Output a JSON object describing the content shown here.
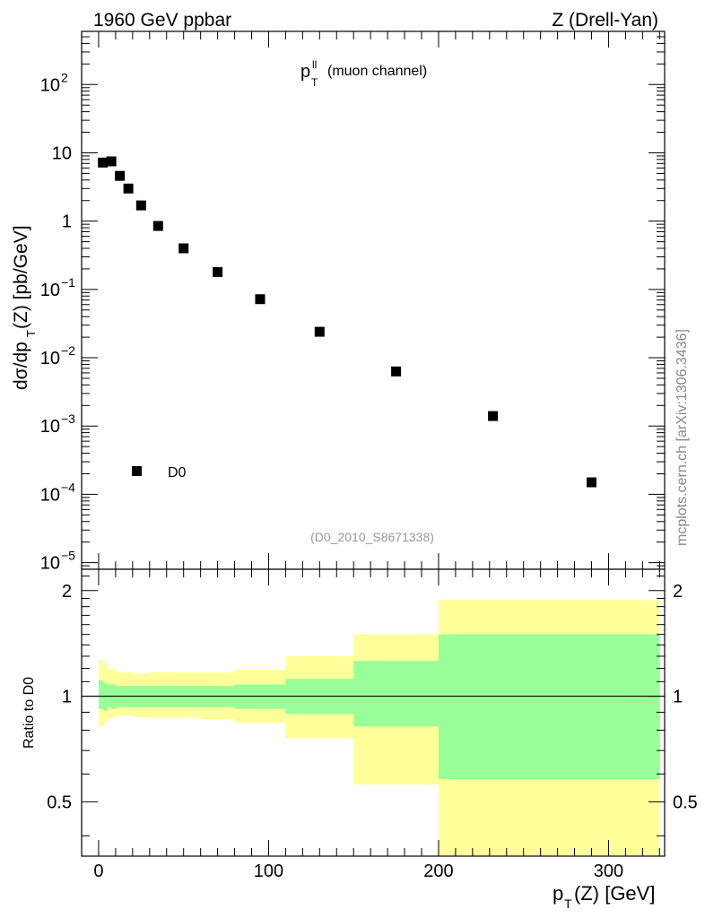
{
  "header": {
    "left_title": "1960 GeV ppbar",
    "right_title": "Z (Drell-Yan)"
  },
  "watermark": "mcplots.cern.ch [arXiv:1306.3436]",
  "colors": {
    "inner_band": "#99ff99",
    "outer_band": "#ffff99",
    "markers": "#000000",
    "ref_label": "#999999",
    "watermark": "#888888"
  },
  "chart_data": [
    {
      "type": "scatter",
      "title": "p_T^ll (muon channel)",
      "title_main": "p",
      "title_sup": "ll",
      "title_sub": "T",
      "title_rest": "(muon channel)",
      "ylabel": "dσ/dp_T(Z) [pb/GeV]",
      "ylabel_main": "dσ/dp",
      "ylabel_sub": "T",
      "ylabel_rest": "(Z) [pb/GeV]",
      "yscale": "log",
      "xlim": [
        -10,
        333
      ],
      "ylim": [
        8e-06,
        600
      ],
      "y_ticks": [
        {
          "value": 1e-05,
          "base": "10",
          "exp": "−5"
        },
        {
          "value": 0.0001,
          "base": "10",
          "exp": "−4"
        },
        {
          "value": 0.001,
          "base": "10",
          "exp": "−3"
        },
        {
          "value": 0.01,
          "base": "10",
          "exp": "−2"
        },
        {
          "value": 0.1,
          "base": "10",
          "exp": "−1"
        },
        {
          "value": 1,
          "base": "1",
          "exp": ""
        },
        {
          "value": 10,
          "base": "10",
          "exp": ""
        },
        {
          "value": 100,
          "base": "10",
          "exp": "2"
        }
      ],
      "series": [
        {
          "name": "D0",
          "marker": "square",
          "points": [
            {
              "x": 2.5,
              "y": 7.2
            },
            {
              "x": 7.5,
              "y": 7.5
            },
            {
              "x": 12.5,
              "y": 4.6
            },
            {
              "x": 17.5,
              "y": 3.0
            },
            {
              "x": 25,
              "y": 1.7
            },
            {
              "x": 35,
              "y": 0.85
            },
            {
              "x": 50,
              "y": 0.4
            },
            {
              "x": 70,
              "y": 0.18
            },
            {
              "x": 95,
              "y": 0.072
            },
            {
              "x": 130,
              "y": 0.024
            },
            {
              "x": 175,
              "y": 0.0063
            },
            {
              "x": 232,
              "y": 0.0014
            },
            {
              "x": 290,
              "y": 0.00015
            }
          ]
        }
      ],
      "legend": {
        "label": "D0",
        "position": "bottom-left"
      },
      "ref_label": "(D0_2010_S8671338)"
    },
    {
      "type": "area",
      "ylabel": "Ratio to D0",
      "xlabel": "p_T(Z) [GeV]",
      "xlabel_main": "p",
      "xlabel_sub": "T",
      "xlabel_rest": "(Z) [GeV]",
      "yscale": "log",
      "xlim": [
        -10,
        333
      ],
      "ylim": [
        0.35,
        2.3
      ],
      "x_ticks": [
        0,
        100,
        200,
        300
      ],
      "y_ticks": [
        0.5,
        1,
        2
      ],
      "reference_line": 1,
      "bands": [
        {
          "x0": 0,
          "x1": 2.5,
          "inner": [
            0.92,
            1.11
          ],
          "outer": [
            0.82,
            1.27
          ]
        },
        {
          "x0": 2.5,
          "x1": 5,
          "inner": [
            0.91,
            1.09
          ],
          "outer": [
            0.84,
            1.24
          ]
        },
        {
          "x0": 5,
          "x1": 7.5,
          "inner": [
            0.93,
            1.08
          ],
          "outer": [
            0.86,
            1.19
          ]
        },
        {
          "x0": 7.5,
          "x1": 10,
          "inner": [
            0.92,
            1.08
          ],
          "outer": [
            0.87,
            1.2
          ]
        },
        {
          "x0": 10,
          "x1": 15,
          "inner": [
            0.93,
            1.07
          ],
          "outer": [
            0.88,
            1.17
          ]
        },
        {
          "x0": 15,
          "x1": 20,
          "inner": [
            0.93,
            1.07
          ],
          "outer": [
            0.88,
            1.17
          ]
        },
        {
          "x0": 20,
          "x1": 30,
          "inner": [
            0.93,
            1.07
          ],
          "outer": [
            0.87,
            1.16
          ]
        },
        {
          "x0": 30,
          "x1": 40,
          "inner": [
            0.93,
            1.07
          ],
          "outer": [
            0.87,
            1.17
          ]
        },
        {
          "x0": 40,
          "x1": 60,
          "inner": [
            0.93,
            1.07
          ],
          "outer": [
            0.87,
            1.17
          ]
        },
        {
          "x0": 60,
          "x1": 80,
          "inner": [
            0.93,
            1.07
          ],
          "outer": [
            0.86,
            1.17
          ]
        },
        {
          "x0": 80,
          "x1": 110,
          "inner": [
            0.92,
            1.08
          ],
          "outer": [
            0.84,
            1.19
          ]
        },
        {
          "x0": 110,
          "x1": 150,
          "inner": [
            0.89,
            1.12
          ],
          "outer": [
            0.76,
            1.3
          ]
        },
        {
          "x0": 150,
          "x1": 200,
          "inner": [
            0.82,
            1.26
          ],
          "outer": [
            0.56,
            1.5
          ]
        },
        {
          "x0": 200,
          "x1": 330,
          "inner": [
            0.58,
            1.5
          ],
          "outer": [
            0.33,
            1.88
          ]
        }
      ]
    }
  ]
}
